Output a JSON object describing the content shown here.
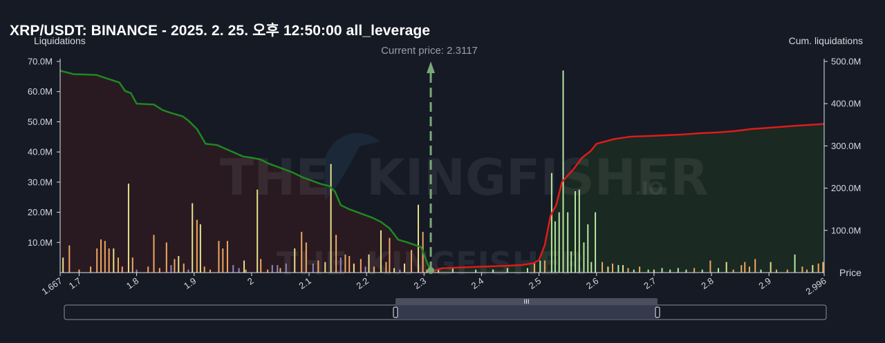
{
  "title": "XRP/USDT: BINANCE - 2025. 2. 25. 오후 12:50:00 all_leverage",
  "watermark": {
    "word1": "THE",
    "word2": "KINGFISHER",
    "suffix": ".IO"
  },
  "colors": {
    "background": "#161a25",
    "long_cum_line": "#1f8a1f",
    "short_cum_line": "#e01b1b",
    "long_fill": "#2a1a22",
    "short_fill": "#1a2a22",
    "bar_orange": "#f0a860",
    "bar_yellow": "#e8e08a",
    "bar_green": "#b8e8a0",
    "bar_purple": "#8a8ac0",
    "current_price": "#7aa878"
  },
  "chart_data": {
    "type": "bar",
    "left_axis_label": "Liquidations",
    "right_axis_label": "Cum. liquidations",
    "x_axis_label": "Price",
    "current_price_label": "Current price: 2.3117",
    "current_price": 2.3117,
    "xlim": [
      1.667,
      2.996
    ],
    "ylim_left": [
      0,
      70000000
    ],
    "ylim_right": [
      0,
      500000000
    ],
    "x_ticks": [
      "1.667",
      "1.7",
      "1.8",
      "1.9",
      "2",
      "2.1",
      "2.2",
      "2.3",
      "2.4",
      "2.5",
      "2.6",
      "2.7",
      "2.8",
      "2.9",
      "2.996"
    ],
    "y_left_ticks": [
      "10.0M",
      "20.0M",
      "30.0M",
      "40.0M",
      "50.0M",
      "60.0M",
      "70.0M"
    ],
    "y_right_ticks": [
      "100.0M",
      "200.0M",
      "300.0M",
      "400.0M",
      "500.0M"
    ],
    "long_cumulative": [
      [
        1.667,
        478
      ],
      [
        1.69,
        470
      ],
      [
        1.73,
        468
      ],
      [
        1.77,
        450
      ],
      [
        1.78,
        430
      ],
      [
        1.79,
        425
      ],
      [
        1.8,
        400
      ],
      [
        1.83,
        398
      ],
      [
        1.845,
        385
      ],
      [
        1.86,
        378
      ],
      [
        1.88,
        370
      ],
      [
        1.89,
        360
      ],
      [
        1.905,
        340
      ],
      [
        1.92,
        305
      ],
      [
        1.94,
        302
      ],
      [
        1.96,
        290
      ],
      [
        1.985,
        275
      ],
      [
        2.0,
        272
      ],
      [
        2.015,
        268
      ],
      [
        2.03,
        258
      ],
      [
        2.05,
        248
      ],
      [
        2.07,
        238
      ],
      [
        2.09,
        225
      ],
      [
        2.1,
        220
      ],
      [
        2.12,
        210
      ],
      [
        2.135,
        205
      ],
      [
        2.145,
        192
      ],
      [
        2.155,
        160
      ],
      [
        2.17,
        150
      ],
      [
        2.19,
        140
      ],
      [
        2.21,
        130
      ],
      [
        2.225,
        120
      ],
      [
        2.24,
        105
      ],
      [
        2.255,
        78
      ],
      [
        2.27,
        72
      ],
      [
        2.285,
        65
      ],
      [
        2.295,
        60
      ],
      [
        2.305,
        25
      ],
      [
        2.3117,
        2
      ]
    ],
    "short_cumulative": [
      [
        2.3117,
        2
      ],
      [
        2.33,
        10
      ],
      [
        2.36,
        12
      ],
      [
        2.4,
        14
      ],
      [
        2.44,
        16
      ],
      [
        2.47,
        18
      ],
      [
        2.49,
        22
      ],
      [
        2.5,
        30
      ],
      [
        2.51,
        65
      ],
      [
        2.52,
        135
      ],
      [
        2.53,
        160
      ],
      [
        2.54,
        215
      ],
      [
        2.56,
        245
      ],
      [
        2.575,
        272
      ],
      [
        2.59,
        288
      ],
      [
        2.6,
        305
      ],
      [
        2.63,
        316
      ],
      [
        2.66,
        322
      ],
      [
        2.7,
        324
      ],
      [
        2.75,
        327
      ],
      [
        2.78,
        330
      ],
      [
        2.81,
        332
      ],
      [
        2.84,
        335
      ],
      [
        2.87,
        340
      ],
      [
        2.89,
        342
      ],
      [
        2.92,
        345
      ],
      [
        2.95,
        348
      ],
      [
        2.996,
        352
      ]
    ],
    "bars": [
      [
        1.672,
        5.0,
        "y"
      ],
      [
        1.683,
        9.0,
        "o"
      ],
      [
        1.7,
        1.0,
        "o"
      ],
      [
        1.72,
        2.0,
        "o"
      ],
      [
        1.731,
        8.0,
        "o"
      ],
      [
        1.738,
        11.0,
        "o"
      ],
      [
        1.745,
        10.5,
        "o"
      ],
      [
        1.752,
        8.0,
        "o"
      ],
      [
        1.76,
        8.0,
        "y"
      ],
      [
        1.768,
        5.0,
        "o"
      ],
      [
        1.775,
        2.0,
        "o"
      ],
      [
        1.786,
        29.5,
        "y"
      ],
      [
        1.793,
        5.0,
        "o"
      ],
      [
        1.8,
        1.0,
        "p"
      ],
      [
        1.82,
        2.0,
        "o"
      ],
      [
        1.83,
        12.5,
        "o"
      ],
      [
        1.84,
        1.5,
        "o"
      ],
      [
        1.852,
        10.0,
        "o"
      ],
      [
        1.86,
        2.5,
        "p"
      ],
      [
        1.866,
        4.5,
        "o"
      ],
      [
        1.873,
        5.5,
        "y"
      ],
      [
        1.882,
        3.0,
        "o"
      ],
      [
        1.89,
        1.0,
        "p"
      ],
      [
        1.897,
        23.0,
        "y"
      ],
      [
        1.905,
        17.5,
        "o"
      ],
      [
        1.911,
        16.0,
        "y"
      ],
      [
        1.918,
        2.0,
        "o"
      ],
      [
        1.928,
        1.0,
        "o"
      ],
      [
        1.943,
        10.5,
        "o"
      ],
      [
        1.95,
        8.0,
        "o"
      ],
      [
        1.958,
        10.5,
        "o"
      ],
      [
        1.968,
        2.5,
        "p"
      ],
      [
        1.978,
        1.5,
        "p"
      ],
      [
        1.987,
        4.0,
        "y"
      ],
      [
        1.99,
        1.0,
        "o"
      ],
      [
        2.01,
        27.5,
        "y"
      ],
      [
        2.016,
        4.5,
        "o"
      ],
      [
        2.028,
        1.0,
        "o"
      ],
      [
        2.036,
        2.5,
        "p"
      ],
      [
        2.045,
        2.5,
        "p"
      ],
      [
        2.05,
        1.5,
        "o"
      ],
      [
        2.06,
        3.0,
        "p"
      ],
      [
        2.075,
        8.0,
        "y"
      ],
      [
        2.087,
        13.5,
        "o"
      ],
      [
        2.095,
        10.0,
        "o"
      ],
      [
        2.107,
        3.0,
        "p"
      ],
      [
        2.116,
        4.0,
        "o"
      ],
      [
        2.128,
        3.5,
        "y"
      ],
      [
        2.138,
        36.0,
        "y"
      ],
      [
        2.147,
        12.5,
        "o"
      ],
      [
        2.155,
        5.0,
        "p"
      ],
      [
        2.163,
        6.0,
        "o"
      ],
      [
        2.17,
        5.5,
        "o"
      ],
      [
        2.178,
        3.0,
        "y"
      ],
      [
        2.19,
        4.5,
        "o"
      ],
      [
        2.198,
        2.0,
        "p"
      ],
      [
        2.204,
        6.0,
        "y"
      ],
      [
        2.213,
        2.0,
        "o"
      ],
      [
        2.225,
        14.0,
        "y"
      ],
      [
        2.234,
        3.5,
        "o"
      ],
      [
        2.24,
        11.5,
        "o"
      ],
      [
        2.248,
        1.5,
        "y"
      ],
      [
        2.258,
        1.0,
        "p"
      ],
      [
        2.266,
        3.0,
        "y"
      ],
      [
        2.278,
        7.5,
        "o"
      ],
      [
        2.29,
        22.5,
        "y"
      ],
      [
        2.298,
        13.5,
        "o"
      ],
      [
        2.305,
        1.0,
        "o"
      ],
      [
        2.325,
        1.0,
        "g"
      ],
      [
        2.35,
        1.5,
        "g"
      ],
      [
        2.39,
        1.0,
        "g"
      ],
      [
        2.42,
        1.0,
        "g"
      ],
      [
        2.445,
        1.5,
        "g"
      ],
      [
        2.48,
        1.5,
        "g"
      ],
      [
        2.492,
        3.5,
        "o"
      ],
      [
        2.502,
        4.0,
        "g"
      ],
      [
        2.51,
        4.0,
        "o"
      ],
      [
        2.522,
        33.0,
        "g"
      ],
      [
        2.528,
        17.0,
        "g"
      ],
      [
        2.535,
        20.0,
        "g"
      ],
      [
        2.542,
        67.0,
        "g"
      ],
      [
        2.55,
        20.0,
        "g"
      ],
      [
        2.556,
        7.0,
        "g"
      ],
      [
        2.563,
        27.0,
        "g"
      ],
      [
        2.57,
        27.5,
        "g"
      ],
      [
        2.578,
        10.0,
        "g"
      ],
      [
        2.585,
        16.0,
        "g"
      ],
      [
        2.591,
        3.5,
        "g"
      ],
      [
        2.598,
        20.0,
        "g"
      ],
      [
        2.61,
        3.5,
        "o"
      ],
      [
        2.62,
        2.0,
        "y"
      ],
      [
        2.628,
        3.0,
        "o"
      ],
      [
        2.638,
        2.5,
        "g"
      ],
      [
        2.646,
        2.5,
        "y"
      ],
      [
        2.655,
        1.5,
        "o"
      ],
      [
        2.665,
        1.0,
        "g"
      ],
      [
        2.675,
        2.0,
        "o"
      ],
      [
        2.69,
        1.0,
        "g"
      ],
      [
        2.7,
        1.0,
        "y"
      ],
      [
        2.714,
        1.5,
        "g"
      ],
      [
        2.728,
        1.0,
        "g"
      ],
      [
        2.742,
        1.5,
        "g"
      ],
      [
        2.756,
        1.0,
        "g"
      ],
      [
        2.77,
        1.5,
        "o"
      ],
      [
        2.784,
        1.0,
        "g"
      ],
      [
        2.798,
        4.0,
        "o"
      ],
      [
        2.812,
        1.5,
        "g"
      ],
      [
        2.826,
        3.5,
        "y"
      ],
      [
        2.838,
        1.0,
        "o"
      ],
      [
        2.852,
        2.5,
        "o"
      ],
      [
        2.858,
        3.5,
        "o"
      ],
      [
        2.866,
        2.0,
        "o"
      ],
      [
        2.876,
        4.5,
        "o"
      ],
      [
        2.886,
        1.0,
        "g"
      ],
      [
        2.903,
        3.5,
        "y"
      ],
      [
        2.913,
        1.0,
        "o"
      ],
      [
        2.932,
        1.0,
        "o"
      ],
      [
        2.945,
        6.0,
        "g"
      ],
      [
        2.958,
        2.0,
        "o"
      ],
      [
        2.966,
        1.0,
        "o"
      ],
      [
        2.976,
        2.5,
        "y"
      ],
      [
        2.986,
        3.0,
        "o"
      ],
      [
        2.994,
        3.5,
        "o"
      ]
    ]
  },
  "slider": {
    "handle_grip": "III"
  }
}
